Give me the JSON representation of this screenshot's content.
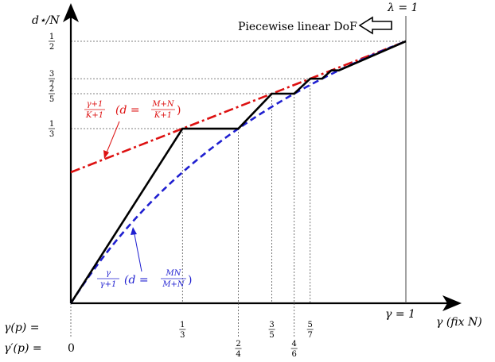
{
  "chart_data": {
    "type": "line",
    "title": "",
    "xlabel": "γ (fix N)",
    "ylabel": "d⋆/N",
    "xlim": [
      0,
      1
    ],
    "ylim": [
      0,
      0.5
    ],
    "grid": false,
    "x_ticks": [
      {
        "x": 0.3333,
        "gamma_label": "1/3",
        "gamma_prime_label": ""
      },
      {
        "x": 0.5,
        "gamma_label": "",
        "gamma_prime_label": "2/4"
      },
      {
        "x": 0.6,
        "gamma_label": "3/5",
        "gamma_prime_label": ""
      },
      {
        "x": 0.6667,
        "gamma_label": "",
        "gamma_prime_label": "4/6"
      },
      {
        "x": 0.7143,
        "gamma_label": "5/7",
        "gamma_prime_label": ""
      }
    ],
    "x_origin_label": "0",
    "x_end_label": "γ = 1",
    "row_labels": [
      "γ(p) =",
      "γ′(p) ="
    ],
    "y_ticks": [
      {
        "y": 0.3333,
        "label": "1/3"
      },
      {
        "y": 0.4,
        "label": "2/5"
      },
      {
        "y": 0.4286,
        "label": "3/7"
      },
      {
        "y": 0.5,
        "label": "1/2"
      }
    ],
    "vertical_line_label": "λ = 1",
    "annotation": "Piecewise linear DoF",
    "series": [
      {
        "name": "(γ+1)/(K+1)  (d = (M+N)/(K+1))",
        "color": "#dd1111",
        "style": "dash-dot",
        "formula": "(x+1)/2",
        "x": [
          0,
          0.25,
          0.5,
          0.75,
          1
        ],
        "y": [
          0.25,
          0.3125,
          0.375,
          0.4375,
          0.5
        ]
      },
      {
        "name": "γ/(γ+1)  (d = MN/(M+N))",
        "color": "#1f1fd0",
        "style": "dashed",
        "formula": "x/(x+1)",
        "x": [
          0,
          0.25,
          0.5,
          0.75,
          1
        ],
        "y": [
          0,
          0.2,
          0.3333,
          0.4286,
          0.5
        ]
      },
      {
        "name": "Piecewise linear DoF",
        "color": "#000000",
        "style": "solid",
        "x": [
          0,
          0.3333,
          0.5,
          0.6,
          0.6667,
          0.7143,
          0.75,
          0.7778,
          0.8,
          1.0
        ],
        "y": [
          0,
          0.3333,
          0.3333,
          0.4,
          0.4,
          0.4286,
          0.4286,
          0.4444,
          0.4444,
          0.5
        ]
      }
    ]
  },
  "labels": {
    "ylabel": "d⋆/N",
    "lambda": "λ = 1",
    "annotation": "Piecewise linear DoF",
    "xlabel": "γ (fix N)",
    "gamma_end": "γ = 1",
    "row1": "γ(p) =",
    "row2": "γ′(p) =",
    "origin": "0",
    "red_frac1_num": "γ+1",
    "red_frac1_den": "K+1",
    "red_mid": "(d =",
    "red_frac2_num": "M+N",
    "red_frac2_den": "K+1",
    "red_close": ")",
    "blue_frac1_num": "γ",
    "blue_frac1_den": "γ+1",
    "blue_mid": "(d =",
    "blue_frac2_num": "MN",
    "blue_frac2_den": "M+N",
    "blue_close": ")"
  }
}
